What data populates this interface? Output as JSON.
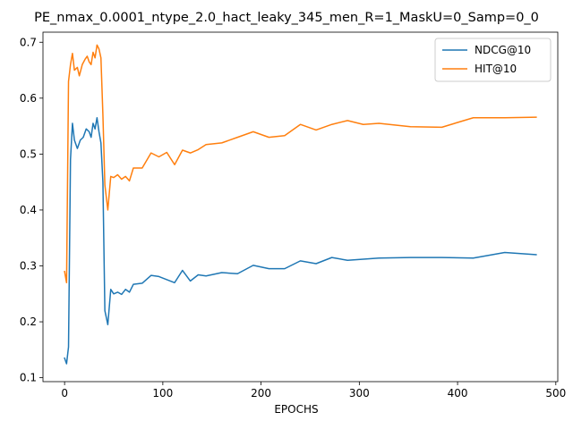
{
  "chart_data": {
    "type": "line",
    "title": "PE_nmax_0.0001_ntype_2.0_hact_leaky_345_men_R=1_MaskU=0_Samp=0_0",
    "xlabel": "EPOCHS",
    "ylabel": "",
    "xlim": [
      -22,
      502
    ],
    "ylim": [
      0.093,
      0.718
    ],
    "xticks": [
      0,
      100,
      200,
      300,
      400,
      500
    ],
    "yticks": [
      0.1,
      0.2,
      0.3,
      0.4,
      0.5,
      0.6,
      0.7
    ],
    "grid": false,
    "legend_position": "top-right",
    "series": [
      {
        "name": "NDCG@10",
        "color": "#1f77b4",
        "points": [
          [
            0,
            0.135
          ],
          [
            2,
            0.125
          ],
          [
            4,
            0.155
          ],
          [
            6,
            0.49
          ],
          [
            8,
            0.555
          ],
          [
            10,
            0.525
          ],
          [
            13,
            0.51
          ],
          [
            16,
            0.525
          ],
          [
            19,
            0.53
          ],
          [
            22,
            0.545
          ],
          [
            25,
            0.54
          ],
          [
            27,
            0.53
          ],
          [
            29,
            0.555
          ],
          [
            31,
            0.545
          ],
          [
            33,
            0.565
          ],
          [
            35,
            0.54
          ],
          [
            37,
            0.52
          ],
          [
            39,
            0.45
          ],
          [
            41,
            0.22
          ],
          [
            44,
            0.195
          ],
          [
            47,
            0.258
          ],
          [
            50,
            0.25
          ],
          [
            54,
            0.253
          ],
          [
            58,
            0.249
          ],
          [
            62,
            0.258
          ],
          [
            66,
            0.253
          ],
          [
            70,
            0.267
          ],
          [
            79,
            0.269
          ],
          [
            88,
            0.283
          ],
          [
            96,
            0.281
          ],
          [
            112,
            0.27
          ],
          [
            120,
            0.292
          ],
          [
            128,
            0.273
          ],
          [
            136,
            0.284
          ],
          [
            144,
            0.282
          ],
          [
            160,
            0.288
          ],
          [
            176,
            0.286
          ],
          [
            192,
            0.301
          ],
          [
            208,
            0.295
          ],
          [
            224,
            0.295
          ],
          [
            240,
            0.309
          ],
          [
            256,
            0.304
          ],
          [
            272,
            0.315
          ],
          [
            288,
            0.31
          ],
          [
            304,
            0.312
          ],
          [
            320,
            0.314
          ],
          [
            352,
            0.315
          ],
          [
            384,
            0.315
          ],
          [
            416,
            0.314
          ],
          [
            448,
            0.324
          ],
          [
            480,
            0.32
          ]
        ]
      },
      {
        "name": "HIT@10",
        "color": "#ff7f0e",
        "points": [
          [
            0,
            0.29
          ],
          [
            2,
            0.27
          ],
          [
            4,
            0.63
          ],
          [
            6,
            0.66
          ],
          [
            8,
            0.68
          ],
          [
            10,
            0.65
          ],
          [
            13,
            0.655
          ],
          [
            15,
            0.64
          ],
          [
            18,
            0.66
          ],
          [
            21,
            0.67
          ],
          [
            23,
            0.675
          ],
          [
            25,
            0.665
          ],
          [
            27,
            0.66
          ],
          [
            29,
            0.682
          ],
          [
            31,
            0.672
          ],
          [
            33,
            0.695
          ],
          [
            35,
            0.688
          ],
          [
            37,
            0.672
          ],
          [
            39,
            0.57
          ],
          [
            41,
            0.445
          ],
          [
            44,
            0.4
          ],
          [
            47,
            0.46
          ],
          [
            50,
            0.458
          ],
          [
            54,
            0.463
          ],
          [
            58,
            0.455
          ],
          [
            62,
            0.46
          ],
          [
            66,
            0.452
          ],
          [
            70,
            0.475
          ],
          [
            79,
            0.475
          ],
          [
            88,
            0.502
          ],
          [
            96,
            0.495
          ],
          [
            104,
            0.503
          ],
          [
            112,
            0.481
          ],
          [
            120,
            0.507
          ],
          [
            128,
            0.502
          ],
          [
            136,
            0.508
          ],
          [
            144,
            0.517
          ],
          [
            160,
            0.52
          ],
          [
            176,
            0.53
          ],
          [
            192,
            0.54
          ],
          [
            208,
            0.53
          ],
          [
            224,
            0.533
          ],
          [
            240,
            0.553
          ],
          [
            256,
            0.543
          ],
          [
            272,
            0.553
          ],
          [
            288,
            0.56
          ],
          [
            304,
            0.553
          ],
          [
            320,
            0.555
          ],
          [
            352,
            0.549
          ],
          [
            384,
            0.548
          ],
          [
            416,
            0.565
          ],
          [
            448,
            0.565
          ],
          [
            480,
            0.566
          ]
        ]
      }
    ]
  }
}
